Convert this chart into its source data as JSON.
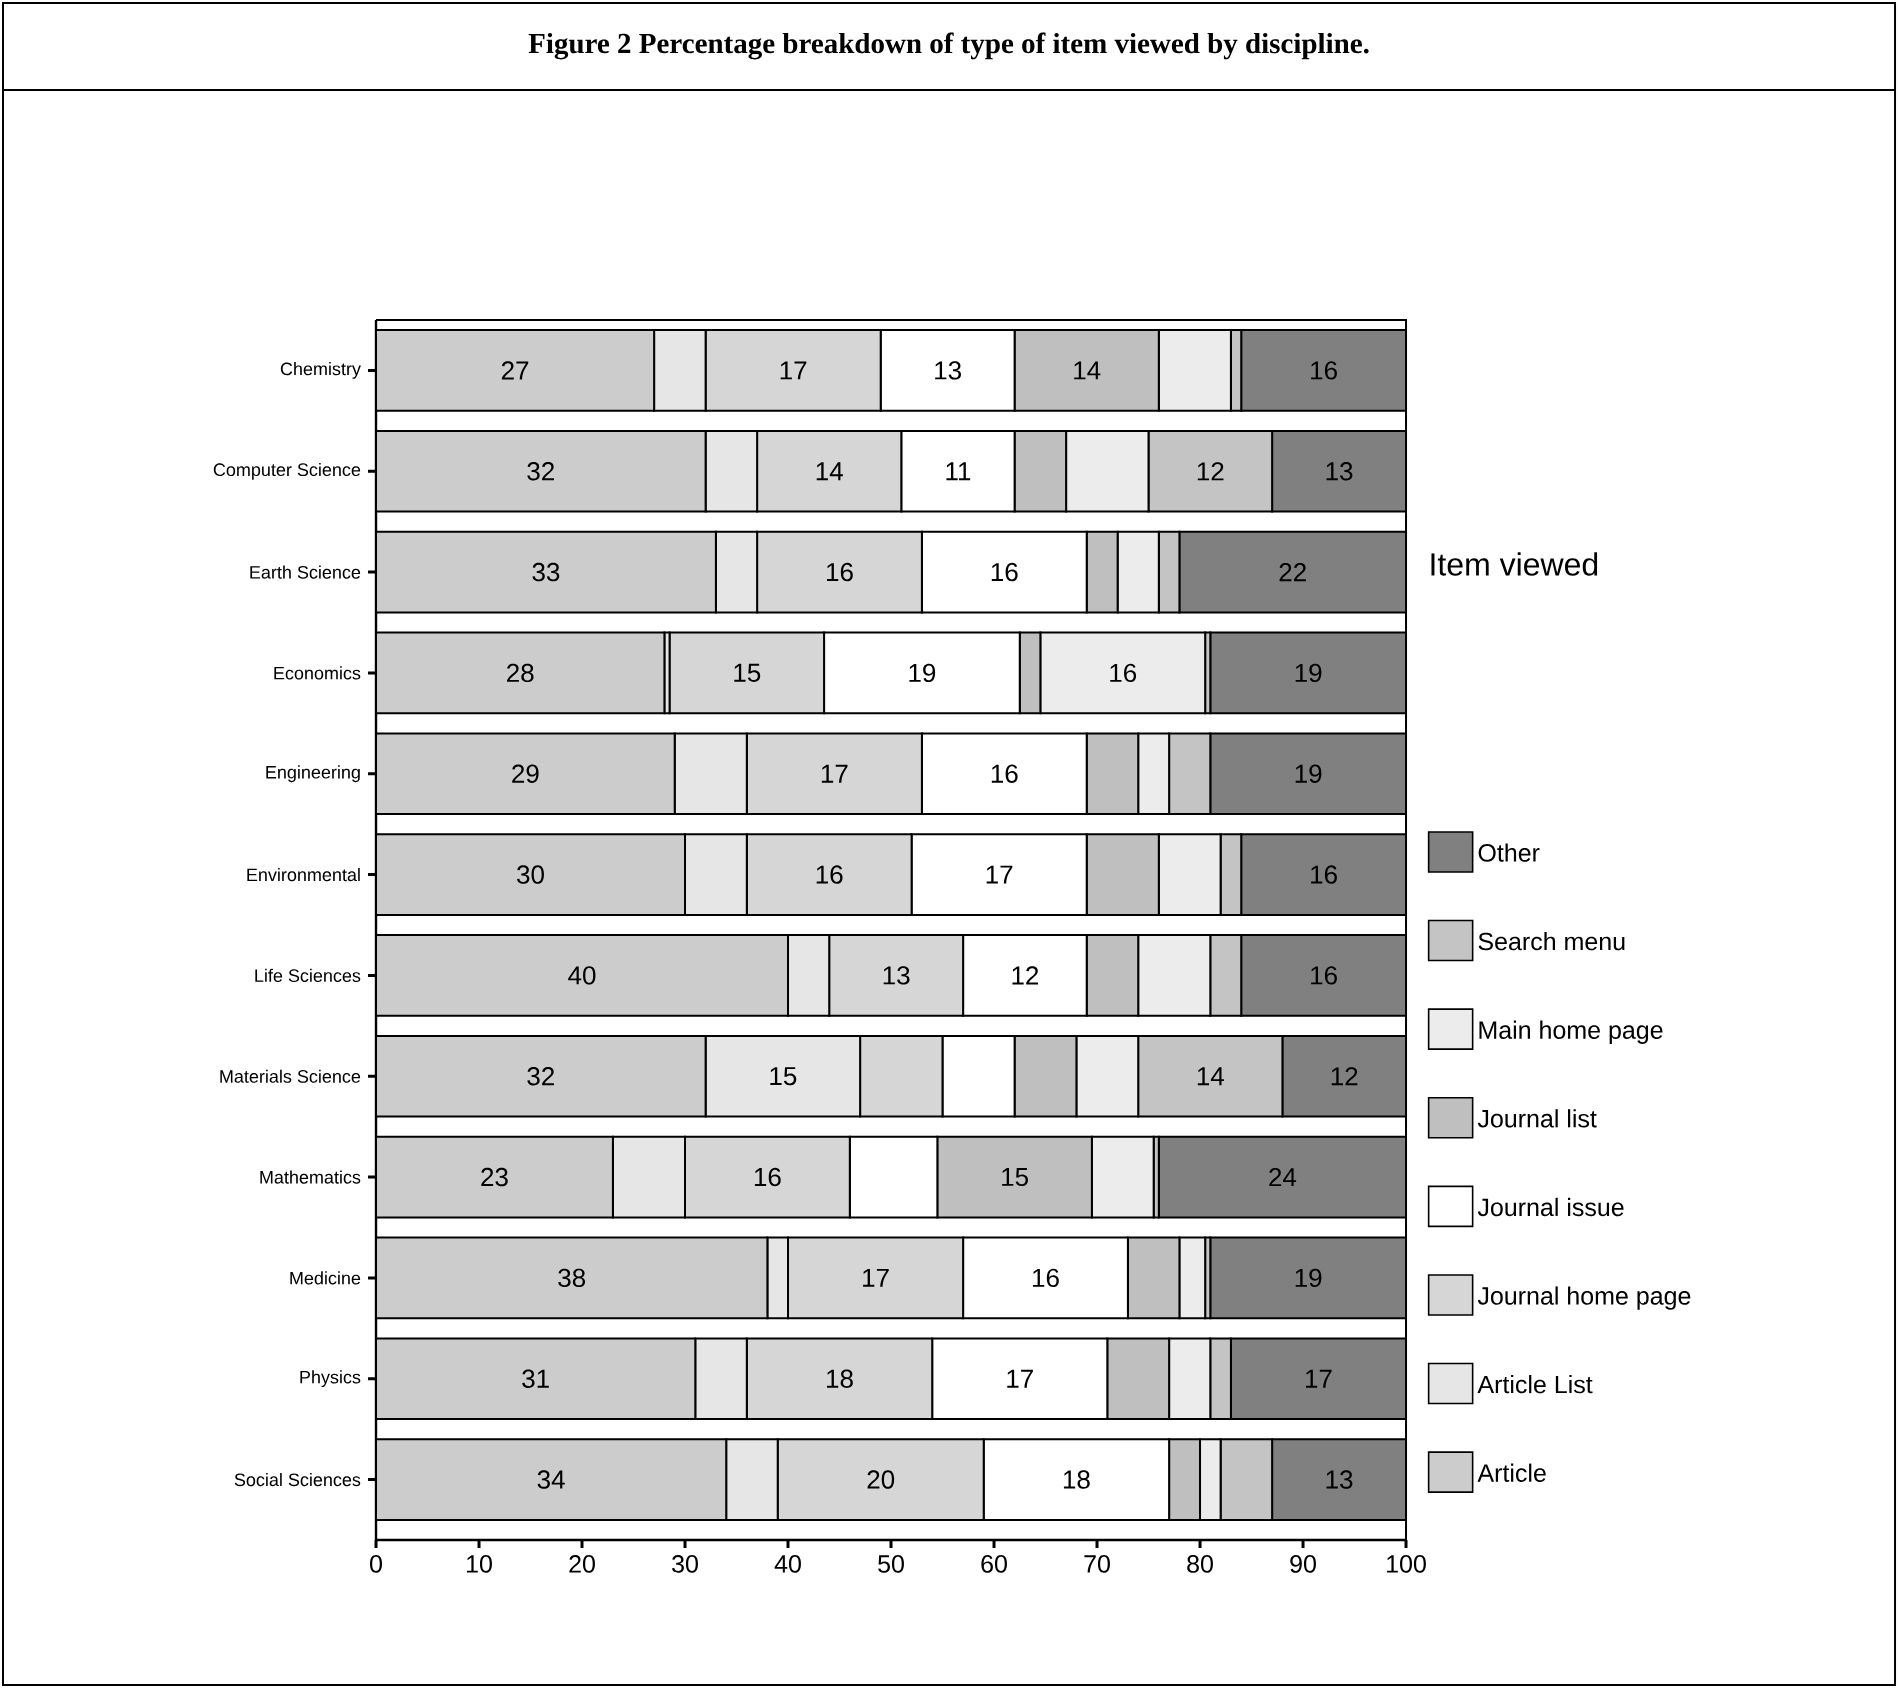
{
  "chart_data": {
    "type": "bar",
    "orientation": "horizontal",
    "stacked": true,
    "title": "Figure 2 Percentage breakdown of type of item viewed by discipline.",
    "legend_title": "Item viewed",
    "legend": "right",
    "categories": [
      "Chemistry",
      "Computer Science",
      "Earth Science",
      "Economics",
      "Engineering",
      "Environmental",
      "Life Sciences",
      "Materials Science",
      "Mathematics",
      "Medicine",
      "Physics",
      "Social Sciences"
    ],
    "xlim": [
      0,
      100
    ],
    "xticks": [
      0,
      10,
      20,
      30,
      40,
      50,
      60,
      70,
      80,
      90,
      100
    ],
    "series": [
      {
        "name": "Article",
        "color": "#cccccc",
        "values": [
          27,
          32,
          33,
          28,
          29,
          30,
          40,
          32,
          23,
          38,
          31,
          34
        ],
        "value_labels": [
          "27",
          "32",
          "33",
          "28",
          "29",
          "30",
          "40",
          "32",
          "23",
          "38",
          "31",
          "34"
        ]
      },
      {
        "name": "Article List",
        "color": "#e6e6e6",
        "values": [
          5,
          5,
          4,
          0.5,
          7,
          6,
          4,
          15,
          7,
          2,
          5,
          5
        ],
        "value_labels": [
          null,
          null,
          null,
          null,
          null,
          null,
          null,
          "15",
          null,
          null,
          null,
          null
        ]
      },
      {
        "name": "Journal home page",
        "color": "#d6d6d6",
        "values": [
          17,
          14,
          16,
          15,
          17,
          16,
          13,
          8,
          16,
          17,
          18,
          20
        ],
        "value_labels": [
          "17",
          "14",
          "16",
          "15",
          "17",
          "16",
          "13",
          null,
          "16",
          "17",
          "18",
          "20"
        ]
      },
      {
        "name": "Journal issue",
        "color": "#ffffff",
        "values": [
          13,
          11,
          16,
          19,
          16,
          17,
          12,
          7,
          8.5,
          16,
          17,
          18
        ],
        "value_labels": [
          "13",
          "11",
          "16",
          "19",
          "16",
          "17",
          "12",
          null,
          null,
          "16",
          "17",
          "18"
        ]
      },
      {
        "name": "Journal list",
        "color": "#bfbfbf",
        "values": [
          14,
          5,
          3,
          2,
          5,
          7,
          5,
          6,
          15,
          5,
          6,
          3
        ],
        "value_labels": [
          "14",
          null,
          null,
          null,
          null,
          null,
          null,
          null,
          "15",
          null,
          null,
          null
        ]
      },
      {
        "name": "Main home page",
        "color": "#ececec",
        "values": [
          7,
          8,
          4,
          16,
          3,
          6,
          7,
          6,
          6,
          2.5,
          4,
          2
        ],
        "value_labels": [
          null,
          null,
          null,
          "16",
          null,
          null,
          null,
          null,
          null,
          null,
          null,
          null
        ]
      },
      {
        "name": "Search menu",
        "color": "#c4c4c4",
        "values": [
          1,
          12,
          2,
          0.5,
          4,
          2,
          3,
          14,
          0.5,
          0.5,
          2,
          5
        ],
        "value_labels": [
          null,
          "12",
          null,
          null,
          null,
          null,
          null,
          "14",
          null,
          null,
          null,
          null
        ]
      },
      {
        "name": "Other",
        "color": "#808080",
        "values": [
          16,
          13,
          22,
          19,
          19,
          16,
          16,
          12,
          24,
          19,
          17,
          13
        ],
        "value_labels": [
          "16",
          "13",
          "22",
          "19",
          "19",
          "16",
          "16",
          "12",
          "24",
          "19",
          "17",
          "13"
        ]
      }
    ]
  }
}
